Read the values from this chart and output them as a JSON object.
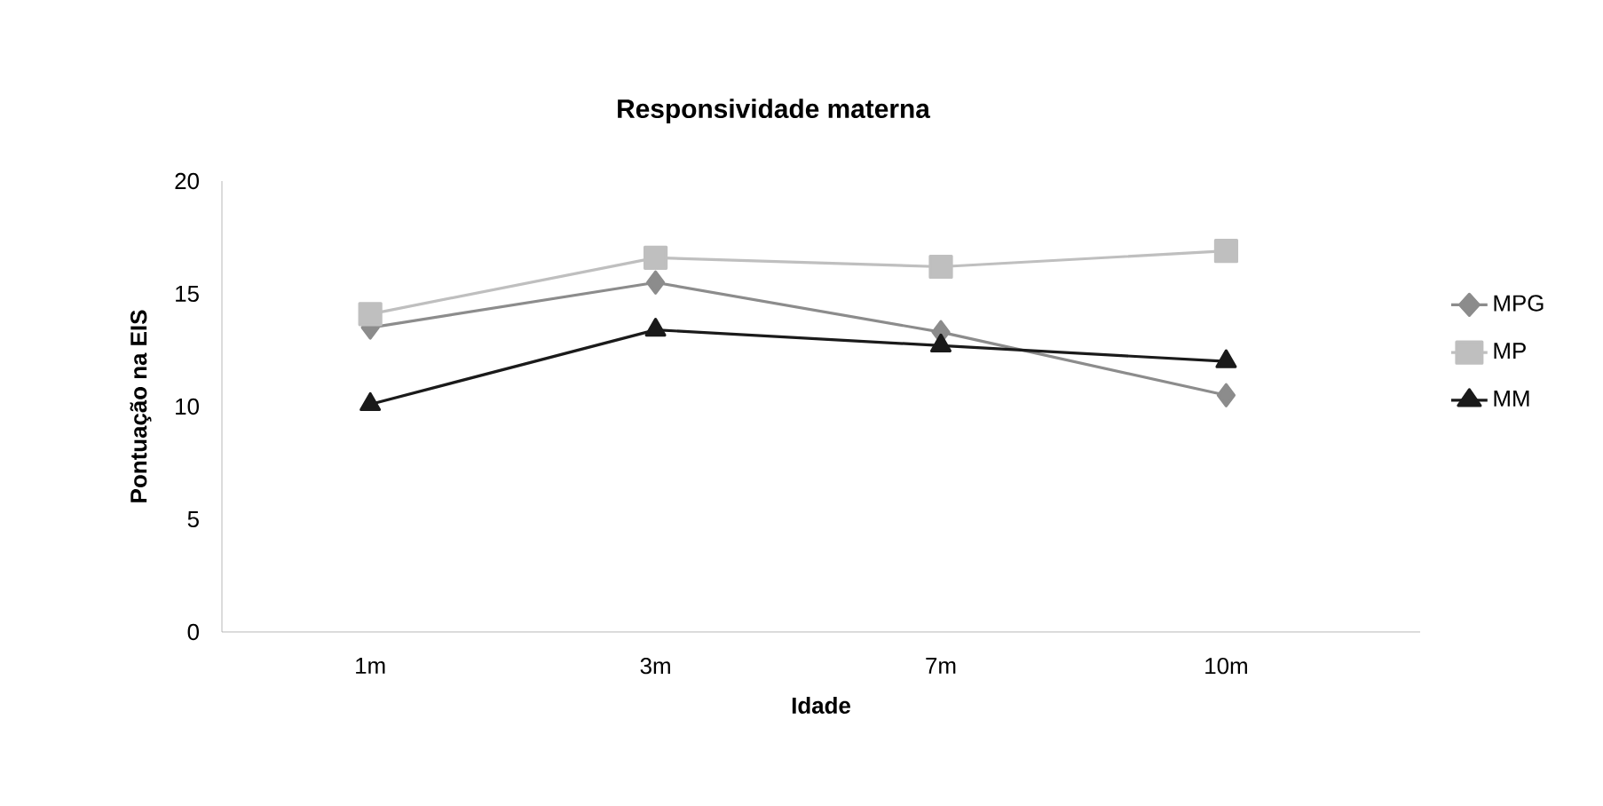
{
  "chart_data": {
    "type": "line",
    "title": "Responsividade materna",
    "xlabel": "Idade",
    "ylabel": "Pontuação na EIS",
    "categories": [
      "1m",
      "3m",
      "7m",
      "10m"
    ],
    "series": [
      {
        "name": "MPG",
        "color": "#8c8c8c",
        "marker": "diamond",
        "values": [
          13.5,
          15.5,
          13.3,
          10.5
        ]
      },
      {
        "name": "MP",
        "color": "#bfbfbf",
        "marker": "square",
        "values": [
          14.1,
          16.6,
          16.2,
          16.9
        ]
      },
      {
        "name": "MM",
        "color": "#1a1a1a",
        "marker": "triangle",
        "values": [
          10.1,
          13.4,
          12.7,
          12.0
        ]
      }
    ],
    "ylim": [
      0,
      20
    ],
    "yticks": [
      0,
      5,
      10,
      15,
      20
    ],
    "grid": false,
    "legend": "right",
    "line_style": "solid"
  }
}
